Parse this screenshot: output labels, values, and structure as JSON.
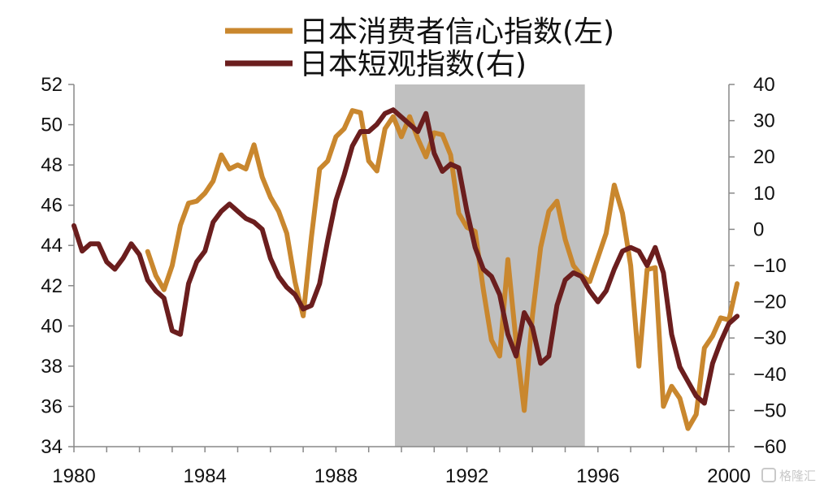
{
  "chart_data": {
    "type": "line",
    "title": "",
    "xlabel": "",
    "ylabel_left": "",
    "ylabel_right": "",
    "x_ticks": [
      "1980",
      "1984",
      "1988",
      "1992",
      "1996",
      "2000"
    ],
    "x_range": [
      1980,
      2000
    ],
    "y_left_range": [
      34,
      52
    ],
    "y_left_ticks": [
      34,
      36,
      38,
      40,
      42,
      44,
      46,
      48,
      50,
      52
    ],
    "y_right_range": [
      -60,
      40
    ],
    "y_right_ticks": [
      -60,
      -50,
      -40,
      -30,
      -20,
      -10,
      0,
      10,
      20,
      30,
      40
    ],
    "shaded_region": {
      "x_start": 1989.8,
      "x_end": 1995.6,
      "color": "#c0c0c0"
    },
    "legend_position": "top-center",
    "grid": false,
    "series": [
      {
        "name": "日本消费者信心指数(左)",
        "axis": "left",
        "color": "#c9872e",
        "points": [
          [
            1982.25,
            43.7
          ],
          [
            1982.5,
            42.5
          ],
          [
            1982.75,
            41.8
          ],
          [
            1983.0,
            43.0
          ],
          [
            1983.25,
            45.0
          ],
          [
            1983.5,
            46.1
          ],
          [
            1983.75,
            46.2
          ],
          [
            1984.0,
            46.6
          ],
          [
            1984.25,
            47.2
          ],
          [
            1984.5,
            48.5
          ],
          [
            1984.75,
            47.8
          ],
          [
            1985.0,
            48.0
          ],
          [
            1985.25,
            47.8
          ],
          [
            1985.5,
            49.0
          ],
          [
            1985.75,
            47.4
          ],
          [
            1986.0,
            46.4
          ],
          [
            1986.25,
            45.7
          ],
          [
            1986.5,
            44.6
          ],
          [
            1986.75,
            42.2
          ],
          [
            1987.0,
            40.5
          ],
          [
            1987.25,
            44.4
          ],
          [
            1987.5,
            47.8
          ],
          [
            1987.75,
            48.2
          ],
          [
            1988.0,
            49.4
          ],
          [
            1988.25,
            49.8
          ],
          [
            1988.5,
            50.7
          ],
          [
            1988.75,
            50.6
          ],
          [
            1989.0,
            48.2
          ],
          [
            1989.25,
            47.7
          ],
          [
            1989.5,
            49.8
          ],
          [
            1989.75,
            50.4
          ],
          [
            1990.0,
            49.4
          ],
          [
            1990.25,
            50.4
          ],
          [
            1990.5,
            49.3
          ],
          [
            1990.75,
            48.4
          ],
          [
            1991.0,
            49.6
          ],
          [
            1991.25,
            49.5
          ],
          [
            1991.5,
            48.5
          ],
          [
            1991.75,
            45.6
          ],
          [
            1992.0,
            44.9
          ],
          [
            1992.25,
            44.7
          ],
          [
            1992.5,
            41.8
          ],
          [
            1992.75,
            39.3
          ],
          [
            1993.0,
            38.5
          ],
          [
            1993.25,
            43.3
          ],
          [
            1993.5,
            39.2
          ],
          [
            1993.75,
            35.8
          ],
          [
            1994.0,
            40.5
          ],
          [
            1994.25,
            43.9
          ],
          [
            1994.5,
            45.7
          ],
          [
            1994.75,
            46.2
          ],
          [
            1995.0,
            44.3
          ],
          [
            1995.25,
            43.0
          ],
          [
            1995.5,
            42.5
          ],
          [
            1995.75,
            42.2
          ],
          [
            1996.0,
            43.4
          ],
          [
            1996.25,
            44.6
          ],
          [
            1996.5,
            47.0
          ],
          [
            1996.75,
            45.6
          ],
          [
            1997.0,
            43.0
          ],
          [
            1997.25,
            38.0
          ],
          [
            1997.5,
            42.8
          ],
          [
            1997.75,
            42.9
          ],
          [
            1998.0,
            36.0
          ],
          [
            1998.25,
            37.0
          ],
          [
            1998.5,
            36.4
          ],
          [
            1998.75,
            34.9
          ],
          [
            1999.0,
            35.6
          ],
          [
            1999.25,
            38.9
          ],
          [
            1999.5,
            39.5
          ],
          [
            1999.75,
            40.4
          ],
          [
            2000.0,
            40.3
          ],
          [
            2000.25,
            42.1
          ]
        ]
      },
      {
        "name": "日本短观指数(右)",
        "axis": "right",
        "color": "#6b1e1e",
        "points": [
          [
            1980.0,
            1
          ],
          [
            1980.25,
            -6
          ],
          [
            1980.5,
            -4
          ],
          [
            1980.75,
            -4
          ],
          [
            1981.0,
            -9
          ],
          [
            1981.25,
            -11
          ],
          [
            1981.5,
            -8
          ],
          [
            1981.75,
            -4
          ],
          [
            1982.0,
            -7
          ],
          [
            1982.25,
            -14
          ],
          [
            1982.5,
            -17
          ],
          [
            1982.75,
            -19
          ],
          [
            1983.0,
            -28
          ],
          [
            1983.25,
            -29
          ],
          [
            1983.5,
            -15
          ],
          [
            1983.75,
            -9
          ],
          [
            1984.0,
            -6
          ],
          [
            1984.25,
            2
          ],
          [
            1984.5,
            5
          ],
          [
            1984.75,
            7
          ],
          [
            1985.0,
            5
          ],
          [
            1985.25,
            3
          ],
          [
            1985.5,
            2
          ],
          [
            1985.75,
            0
          ],
          [
            1986.0,
            -8
          ],
          [
            1986.25,
            -13
          ],
          [
            1986.5,
            -16
          ],
          [
            1986.75,
            -18
          ],
          [
            1987.0,
            -22
          ],
          [
            1987.25,
            -21
          ],
          [
            1987.5,
            -15
          ],
          [
            1987.75,
            -3
          ],
          [
            1988.0,
            8
          ],
          [
            1988.25,
            15
          ],
          [
            1988.5,
            23
          ],
          [
            1988.75,
            27
          ],
          [
            1989.0,
            27
          ],
          [
            1989.25,
            29
          ],
          [
            1989.5,
            32
          ],
          [
            1989.75,
            33
          ],
          [
            1990.0,
            31
          ],
          [
            1990.25,
            29
          ],
          [
            1990.5,
            27
          ],
          [
            1990.75,
            32
          ],
          [
            1991.0,
            21
          ],
          [
            1991.25,
            16
          ],
          [
            1991.5,
            18
          ],
          [
            1991.75,
            17
          ],
          [
            1992.0,
            5
          ],
          [
            1992.25,
            -5
          ],
          [
            1992.5,
            -11
          ],
          [
            1992.75,
            -13
          ],
          [
            1993.0,
            -18
          ],
          [
            1993.25,
            -29
          ],
          [
            1993.5,
            -35
          ],
          [
            1993.75,
            -23
          ],
          [
            1994.0,
            -27
          ],
          [
            1994.25,
            -37
          ],
          [
            1994.5,
            -35
          ],
          [
            1994.75,
            -21
          ],
          [
            1995.0,
            -14
          ],
          [
            1995.25,
            -12
          ],
          [
            1995.5,
            -13
          ],
          [
            1995.75,
            -17
          ],
          [
            1996.0,
            -20
          ],
          [
            1996.25,
            -17
          ],
          [
            1996.5,
            -11
          ],
          [
            1996.75,
            -6
          ],
          [
            1997.0,
            -5
          ],
          [
            1997.25,
            -6
          ],
          [
            1997.5,
            -10
          ],
          [
            1997.75,
            -5
          ],
          [
            1998.0,
            -12
          ],
          [
            1998.25,
            -29
          ],
          [
            1998.5,
            -38
          ],
          [
            1998.75,
            -42
          ],
          [
            1999.0,
            -46
          ],
          [
            1999.25,
            -48
          ],
          [
            1999.5,
            -37
          ],
          [
            1999.75,
            -31
          ],
          [
            2000.0,
            -26
          ],
          [
            2000.25,
            -24
          ]
        ]
      }
    ]
  },
  "watermark": "格隆汇"
}
